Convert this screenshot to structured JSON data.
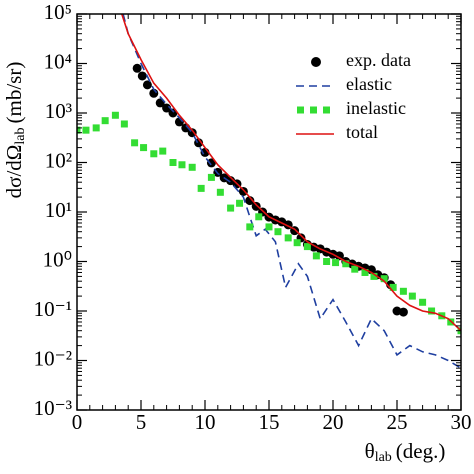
{
  "chart_data": {
    "type": "line",
    "ylabel": {
      "text": "dσ/dΩ",
      "subscript": "lab",
      "unit": "(mb/sr)"
    },
    "xlabel": {
      "text": "θ",
      "subscript": "lab",
      "unit": "(deg.)"
    },
    "xlim": [
      0,
      30
    ],
    "xticks": [
      0,
      5,
      10,
      15,
      20,
      25,
      30
    ],
    "ylim": [
      0.001,
      100000
    ],
    "yscale": "log",
    "yticks": [
      {
        "value": 0.001,
        "label": "10⁻³"
      },
      {
        "value": 0.01,
        "label": "10⁻²"
      },
      {
        "value": 0.1,
        "label": "10⁻¹"
      },
      {
        "value": 1,
        "label": "10⁰"
      },
      {
        "value": 10,
        "label": "10¹"
      },
      {
        "value": 100,
        "label": "10²"
      },
      {
        "value": 1000,
        "label": "10³"
      },
      {
        "value": 10000,
        "label": "10⁴"
      },
      {
        "value": 100000,
        "label": "10⁵"
      }
    ],
    "legend": "upper right",
    "series": [
      {
        "name": "exp. data",
        "color": "#000000",
        "mode": "markers",
        "x": [
          4.7,
          5.1,
          5.5,
          6.0,
          6.5,
          7.0,
          7.5,
          8.0,
          8.5,
          9.0,
          9.5,
          10.0,
          10.5,
          11.0,
          11.5,
          12.0,
          12.5,
          13.0,
          13.5,
          14.0,
          14.5,
          15.0,
          15.5,
          16.0,
          16.5,
          17.0,
          17.5,
          18.0,
          18.5,
          19.0,
          19.5,
          20.0,
          20.5,
          21.0,
          21.5,
          22.0,
          22.5,
          23.0,
          23.5,
          24.0,
          24.5,
          25.0,
          25.5
        ],
        "values": [
          8000,
          5600,
          3700,
          2500,
          1600,
          1260,
          1000,
          660,
          500,
          400,
          250,
          160,
          98,
          63,
          49,
          43,
          37,
          26,
          17,
          13,
          10,
          7.9,
          6.9,
          6.3,
          5.5,
          4.2,
          3.0,
          2.2,
          1.95,
          1.8,
          1.55,
          1.4,
          1.3,
          1.0,
          0.89,
          0.8,
          0.74,
          0.68,
          0.54,
          0.47,
          0.34,
          0.1,
          0.095
        ]
      },
      {
        "name": "elastic",
        "color": "#1f3fa0",
        "mode": "dashed",
        "x": [
          3.6,
          4,
          5,
          6,
          7,
          8,
          9,
          10,
          11,
          12,
          13,
          13.5,
          14,
          14.7,
          15.5,
          16.3,
          17.3,
          18,
          19,
          20,
          21,
          22,
          23,
          24,
          25,
          26,
          27,
          28,
          29,
          30
        ],
        "values": [
          100000,
          40000,
          10000,
          3000,
          1500,
          800,
          400,
          130,
          60,
          40,
          20,
          8,
          3.3,
          4.5,
          2.5,
          0.3,
          0.9,
          0.5,
          0.07,
          0.17,
          0.06,
          0.02,
          0.07,
          0.04,
          0.013,
          0.02,
          0.015,
          0.013,
          0.01,
          0.007
        ]
      },
      {
        "name": "inelastic",
        "color": "#33dd33",
        "mode": "squares",
        "x": [
          0,
          0.7,
          1.5,
          2.2,
          3.0,
          3.7,
          4.5,
          5.2,
          6.0,
          6.7,
          7.5,
          8.2,
          9.0,
          9.7,
          10.5,
          11.2,
          12.0,
          12.7,
          13.5,
          14.2,
          15.0,
          15.7,
          16.5,
          17.2,
          18.0,
          18.7,
          19.5,
          20.2,
          21.0,
          21.7,
          22.5,
          23.2,
          24.0,
          24.7,
          25.5,
          26.2,
          27.0,
          27.7,
          28.5,
          29.2,
          30.0
        ],
        "values": [
          450,
          450,
          500,
          700,
          900,
          600,
          250,
          200,
          150,
          170,
          100,
          90,
          80,
          30,
          50,
          25,
          12,
          15,
          5,
          8,
          5,
          4,
          3,
          2.4,
          2,
          1.3,
          1,
          0.95,
          0.9,
          0.7,
          0.6,
          0.5,
          0.45,
          0.3,
          0.25,
          0.2,
          0.15,
          0.1,
          0.08,
          0.06,
          0.04
        ]
      },
      {
        "name": "total",
        "color": "#dd1111",
        "mode": "solid",
        "x": [
          3.5,
          4,
          5,
          6,
          7,
          8,
          9,
          10,
          11,
          12,
          13,
          14,
          15,
          16,
          17,
          18,
          19,
          20,
          21,
          22,
          23,
          24,
          25,
          26,
          27,
          28,
          29,
          30
        ],
        "values": [
          100000,
          40000,
          12000,
          4000,
          2000,
          900,
          450,
          200,
          90,
          50,
          28,
          14,
          8,
          6,
          4.5,
          2.5,
          1.8,
          1.4,
          1.0,
          0.8,
          0.6,
          0.4,
          0.2,
          0.13,
          0.1,
          0.09,
          0.07,
          0.04
        ]
      }
    ]
  }
}
